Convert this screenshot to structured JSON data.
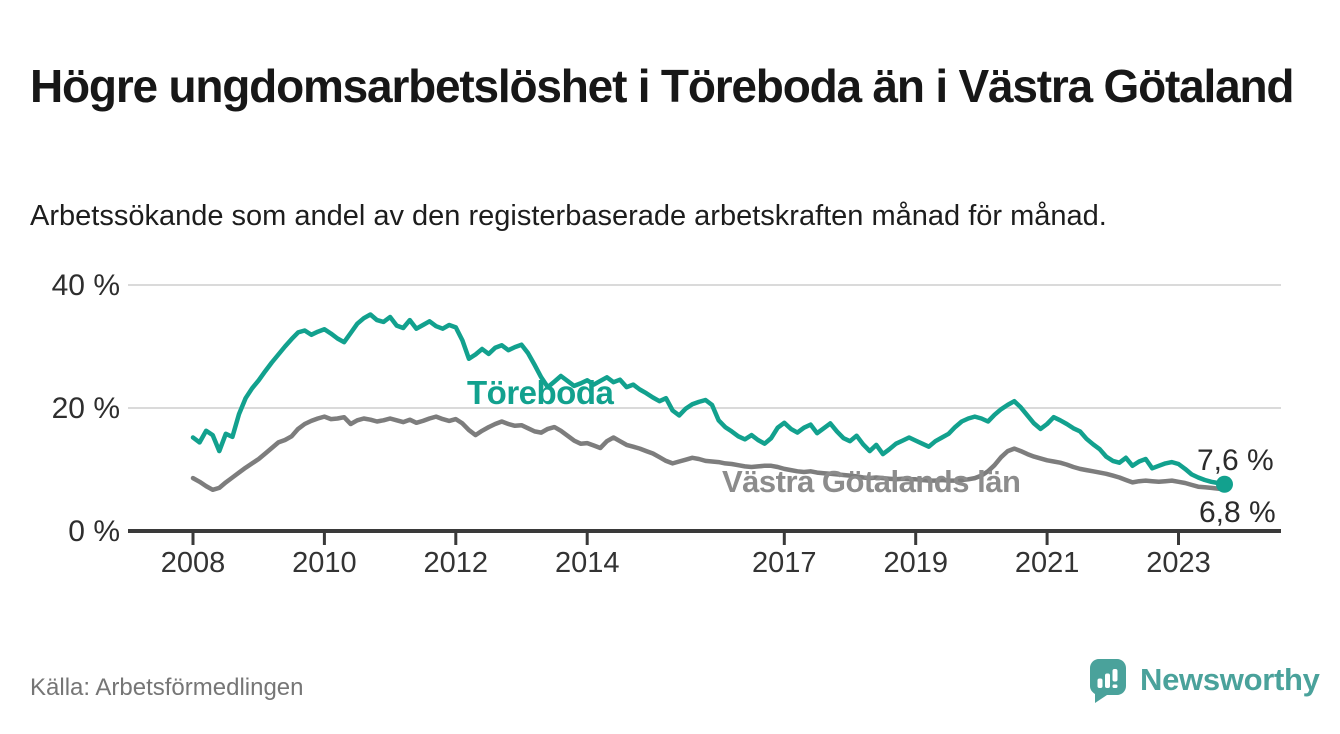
{
  "page": {
    "title": "Högre ungdomsarbetslöshet i Töreboda än i Västra Götaland",
    "subtitle": "Arbetssökande som andel av den registerbaserade arbetskraften månad för månad.",
    "source": "Källa: Arbetsförmedlingen",
    "brand": "Newsworthy"
  },
  "colors": {
    "accent_teal": "#12a18e",
    "series_gray": "#7d7d7d",
    "series_gray_label": "#8c8c8c",
    "logo_teal": "#4aa29b",
    "grid": "#dadada",
    "axis": "#3a3a3a",
    "end_label_text": "#2b2b2b"
  },
  "chart_data": {
    "type": "line",
    "title": "Högre ungdomsarbetslöshet i Töreboda än i Västra Götaland",
    "subtitle": "Arbetssökande som andel av den registerbaserade arbetskraften månad för månad.",
    "x_unit": "decimal year (monthly samples)",
    "x_start": 2008.0,
    "x_step": 0.1,
    "xlim": [
      2008.0,
      2023.7
    ],
    "ylim": [
      0,
      45
    ],
    "grid": "horizontal-only",
    "legend": "inline-labels",
    "x_ticks": [
      2008,
      2010,
      2012,
      2014,
      2017,
      2019,
      2021,
      2023
    ],
    "x_tick_labels": [
      "2008",
      "2010",
      "2012",
      "2014",
      "2017",
      "2019",
      "2021",
      "2023"
    ],
    "y_ticks": [
      0,
      20,
      40
    ],
    "y_tick_labels": [
      "0 %",
      "20 %",
      "40 %"
    ],
    "end_labels": [
      "7,6 %",
      "6,8 %"
    ],
    "series": [
      {
        "name": "Töreboda",
        "color": "#12a18e",
        "last_value_label": "7,6 %",
        "values": [
          15.2,
          14.4,
          16.3,
          15.6,
          13.0,
          15.8,
          15.3,
          19.0,
          21.6,
          23.2,
          24.5,
          26.0,
          27.4,
          28.7,
          30.0,
          31.2,
          32.3,
          32.6,
          31.9,
          32.4,
          32.8,
          32.1,
          31.3,
          30.7,
          32.2,
          33.7,
          34.6,
          35.2,
          34.3,
          34.0,
          34.8,
          33.4,
          33.0,
          34.3,
          32.9,
          33.5,
          34.1,
          33.3,
          32.9,
          33.5,
          33.1,
          31.0,
          28.0,
          28.7,
          29.6,
          28.8,
          29.8,
          30.2,
          29.4,
          29.9,
          30.3,
          28.9,
          27.0,
          25.0,
          23.4,
          24.3,
          25.2,
          24.4,
          23.6,
          24.0,
          24.5,
          23.8,
          24.4,
          25.0,
          24.2,
          24.6,
          23.4,
          23.8,
          23.0,
          22.4,
          21.7,
          21.1,
          21.6,
          19.6,
          18.8,
          19.9,
          20.6,
          21.0,
          21.3,
          20.5,
          18.0,
          16.9,
          16.2,
          15.4,
          14.9,
          15.6,
          14.8,
          14.2,
          15.1,
          16.8,
          17.6,
          16.6,
          16.0,
          16.8,
          17.3,
          15.9,
          16.7,
          17.5,
          16.2,
          15.1,
          14.6,
          15.5,
          14.1,
          13.0,
          14.0,
          12.5,
          13.3,
          14.2,
          14.7,
          15.2,
          14.7,
          14.2,
          13.7,
          14.6,
          15.2,
          15.8,
          16.9,
          17.8,
          18.3,
          18.6,
          18.3,
          17.8,
          18.9,
          19.8,
          20.5,
          21.1,
          20.1,
          18.8,
          17.5,
          16.6,
          17.4,
          18.5,
          18.0,
          17.4,
          16.7,
          16.2,
          15.0,
          14.1,
          13.3,
          12.1,
          11.4,
          11.1,
          11.9,
          10.6,
          11.3,
          11.7,
          10.2,
          10.6,
          11.0,
          11.2,
          10.9,
          10.1,
          9.2,
          8.7,
          8.3,
          8.0,
          7.8,
          7.6
        ]
      },
      {
        "name": "Västra Götalands län",
        "color": "#7d7d7d",
        "last_value_label": "6,8 %",
        "values": [
          8.6,
          8.0,
          7.3,
          6.7,
          7.0,
          7.9,
          8.7,
          9.5,
          10.3,
          11.0,
          11.7,
          12.6,
          13.5,
          14.4,
          14.8,
          15.4,
          16.6,
          17.4,
          17.9,
          18.3,
          18.6,
          18.2,
          18.3,
          18.5,
          17.4,
          18.0,
          18.3,
          18.1,
          17.8,
          18.0,
          18.3,
          18.0,
          17.7,
          18.1,
          17.6,
          17.9,
          18.3,
          18.6,
          18.2,
          17.9,
          18.2,
          17.5,
          16.4,
          15.6,
          16.3,
          16.9,
          17.4,
          17.8,
          17.4,
          17.1,
          17.2,
          16.7,
          16.2,
          16.0,
          16.6,
          16.9,
          16.3,
          15.5,
          14.7,
          14.2,
          14.3,
          13.9,
          13.5,
          14.6,
          15.2,
          14.6,
          14.0,
          13.7,
          13.4,
          13.0,
          12.6,
          12.0,
          11.4,
          11.0,
          11.3,
          11.6,
          11.9,
          11.7,
          11.4,
          11.3,
          11.2,
          11.0,
          10.9,
          10.7,
          10.5,
          10.4,
          10.5,
          10.6,
          10.6,
          10.4,
          10.1,
          9.9,
          9.7,
          9.6,
          9.7,
          9.5,
          9.4,
          9.3,
          9.2,
          9.1,
          9.0,
          8.9,
          8.7,
          8.6,
          8.7,
          8.6,
          8.5,
          8.4,
          8.5,
          8.4,
          8.4,
          8.3,
          8.2,
          8.2,
          8.3,
          8.2,
          8.2,
          8.3,
          8.4,
          8.6,
          9.0,
          9.7,
          10.7,
          12.0,
          13.0,
          13.4,
          13.0,
          12.5,
          12.1,
          11.8,
          11.5,
          11.3,
          11.1,
          10.8,
          10.4,
          10.1,
          9.9,
          9.7,
          9.5,
          9.3,
          9.0,
          8.7,
          8.3,
          7.9,
          8.1,
          8.2,
          8.1,
          8.0,
          8.1,
          8.2,
          8.0,
          7.8,
          7.5,
          7.2,
          7.1,
          7.0,
          6.9,
          6.8
        ]
      }
    ]
  }
}
